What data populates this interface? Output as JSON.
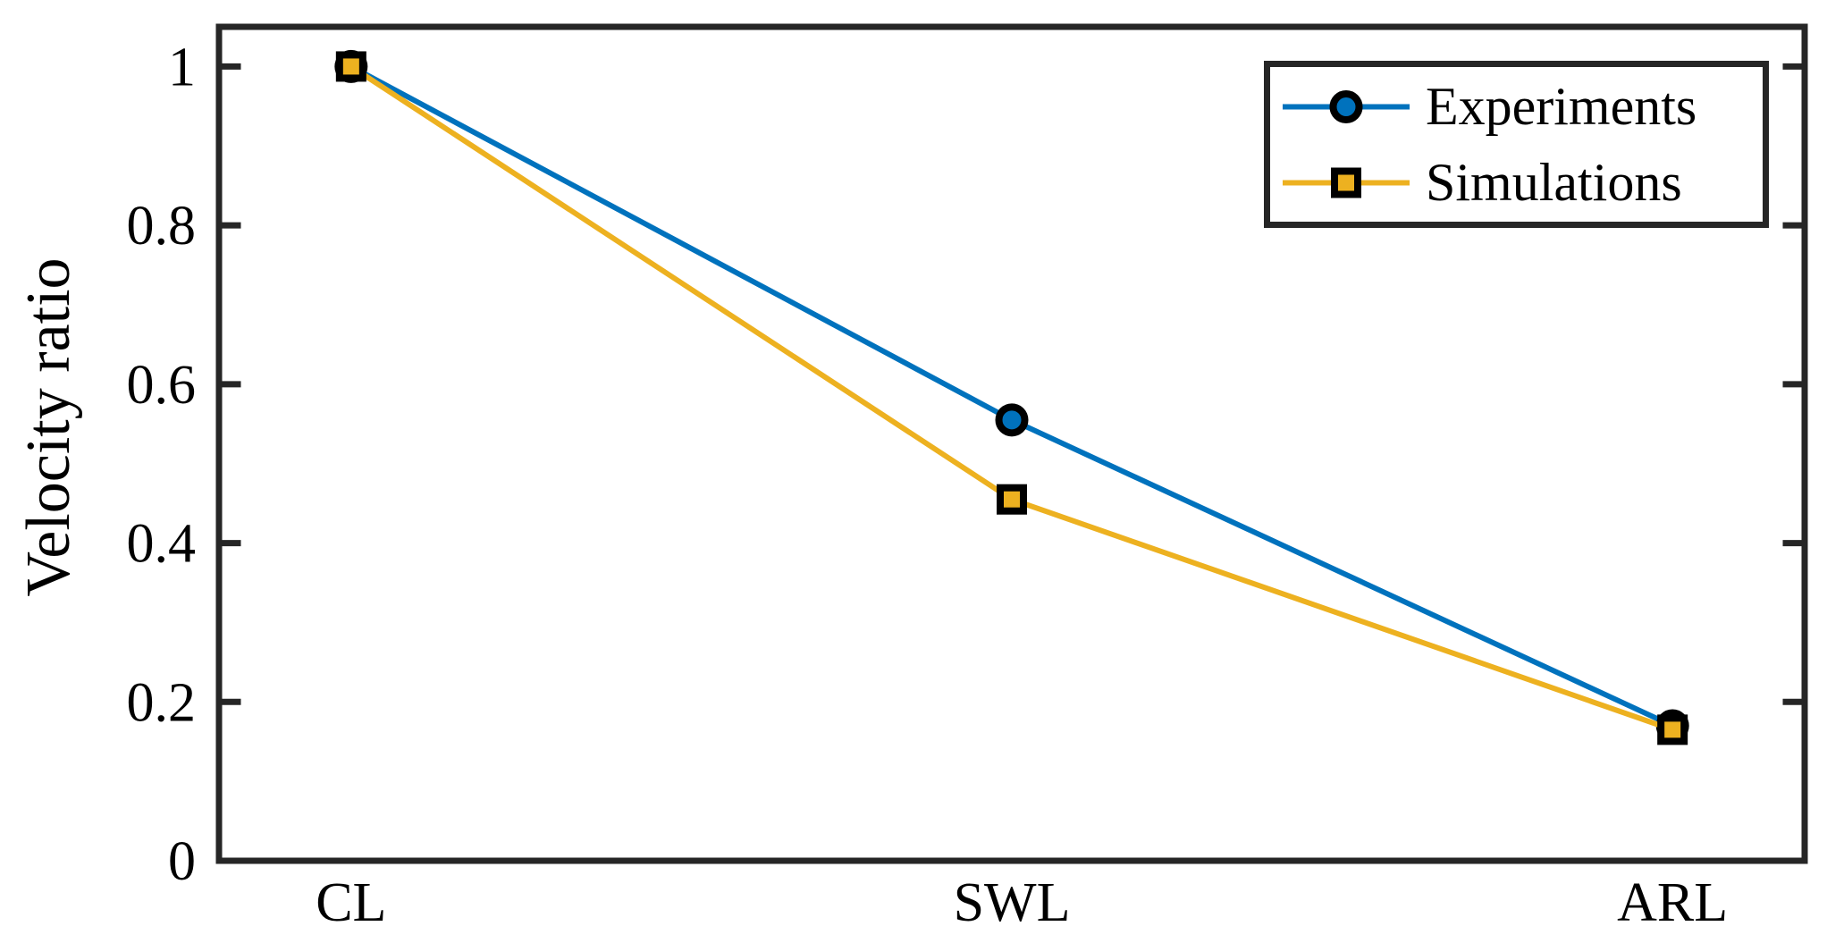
{
  "figure": {
    "background": "#ffffff"
  },
  "chart_data": {
    "type": "line",
    "title": "",
    "xlabel": "",
    "ylabel": "Velocity ratio",
    "categories": [
      "CL",
      "SWL",
      "ARL"
    ],
    "x_positions": [
      1,
      2,
      3
    ],
    "xlim": [
      0.8,
      3.2
    ],
    "ylim": [
      0,
      1.05
    ],
    "yticks": [
      0,
      0.2,
      0.4,
      0.6,
      0.8,
      1
    ],
    "ytick_labels": [
      "0",
      "0.2",
      "0.4",
      "0.6",
      "0.8",
      "1"
    ],
    "grid": false,
    "legend_position": "northeast",
    "axis_color": "#262626",
    "text_color": "#000000",
    "marker_edge_color": "#000000",
    "series": [
      {
        "name": "Experiments",
        "values": [
          1.0,
          0.555,
          0.17
        ],
        "color": "#0072BD",
        "marker": "circle"
      },
      {
        "name": "Simulations",
        "values": [
          1.0,
          0.455,
          0.165
        ],
        "color": "#EDB120",
        "marker": "square"
      }
    ]
  }
}
